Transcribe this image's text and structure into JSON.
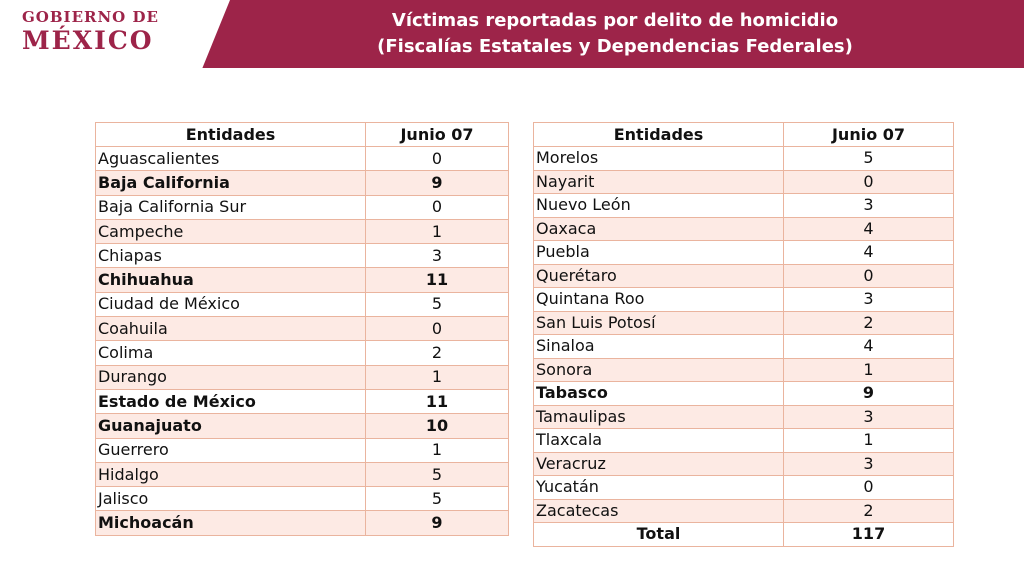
{
  "header": {
    "logo": [
      "GOBIERNO DE",
      "MÉXICO"
    ],
    "title": [
      "Víctimas reportadas por delito de homicidio",
      "(Fiscalías Estatales y Dependencias Federales)"
    ]
  },
  "tables": [
    {
      "columns": [
        "Entidades",
        "Junio 07"
      ],
      "rows": [
        {
          "entity": "Aguascalientes",
          "value": 0
        },
        {
          "entity": "Baja California",
          "value": 9,
          "bold": true
        },
        {
          "entity": "Baja California Sur",
          "value": 0
        },
        {
          "entity": "Campeche",
          "value": 1
        },
        {
          "entity": "Chiapas",
          "value": 3
        },
        {
          "entity": "Chihuahua",
          "value": 11,
          "bold": true
        },
        {
          "entity": "Ciudad de México",
          "value": 5
        },
        {
          "entity": "Coahuila",
          "value": 0
        },
        {
          "entity": "Colima",
          "value": 2
        },
        {
          "entity": "Durango",
          "value": 1
        },
        {
          "entity": "Estado de México",
          "value": 11,
          "bold": true
        },
        {
          "entity": "Guanajuato",
          "value": 10,
          "bold": true
        },
        {
          "entity": "Guerrero",
          "value": 1
        },
        {
          "entity": "Hidalgo",
          "value": 5
        },
        {
          "entity": "Jalisco",
          "value": 5
        },
        {
          "entity": "Michoacán",
          "value": 9,
          "bold": true
        }
      ]
    },
    {
      "columns": [
        "Entidades",
        "Junio 07"
      ],
      "rows": [
        {
          "entity": "Morelos",
          "value": 5
        },
        {
          "entity": "Nayarit",
          "value": 0
        },
        {
          "entity": "Nuevo León",
          "value": 3
        },
        {
          "entity": "Oaxaca",
          "value": 4
        },
        {
          "entity": "Puebla",
          "value": 4
        },
        {
          "entity": "Querétaro",
          "value": 0
        },
        {
          "entity": "Quintana Roo",
          "value": 3
        },
        {
          "entity": "San Luis Potosí",
          "value": 2
        },
        {
          "entity": "Sinaloa",
          "value": 4
        },
        {
          "entity": "Sonora",
          "value": 1
        },
        {
          "entity": "Tabasco",
          "value": 9,
          "bold": true
        },
        {
          "entity": "Tamaulipas",
          "value": 3
        },
        {
          "entity": "Tlaxcala",
          "value": 1
        },
        {
          "entity": "Veracruz",
          "value": 3
        },
        {
          "entity": "Yucatán",
          "value": 0
        },
        {
          "entity": "Zacatecas",
          "value": 2
        }
      ],
      "total": {
        "label": "Total",
        "value": 117
      }
    }
  ]
}
